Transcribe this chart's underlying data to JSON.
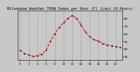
{
  "hours": [
    0,
    1,
    2,
    3,
    4,
    5,
    6,
    7,
    8,
    9,
    10,
    11,
    12,
    13,
    14,
    15,
    16,
    17,
    18,
    19,
    20,
    21,
    22,
    23
  ],
  "values": [
    38,
    34,
    32,
    30,
    31,
    33,
    38,
    50,
    60,
    68,
    74,
    80,
    84,
    80,
    72,
    62,
    56,
    52,
    50,
    47,
    45,
    44,
    43,
    42
  ],
  "line_color": "#ff0000",
  "marker_color": "#000000",
  "bg_color": "#c8c8c8",
  "plot_bg": "#c8c8c8",
  "grid_color": "#888888",
  "title": "Milwaukee Weather THSW Index per Hour (F) (Last 24 Hours)",
  "ylim": [
    25,
    90
  ],
  "xlim": [
    -0.5,
    23.5
  ],
  "yticks": [
    30,
    40,
    50,
    60,
    70,
    80
  ],
  "xticks": [
    0,
    2,
    4,
    6,
    8,
    10,
    12,
    14,
    16,
    18,
    20,
    22
  ],
  "title_fontsize": 3.8,
  "tick_fontsize": 3.0,
  "line_width": 0.8,
  "marker_size": 2.0,
  "marker_ew": 0.6
}
